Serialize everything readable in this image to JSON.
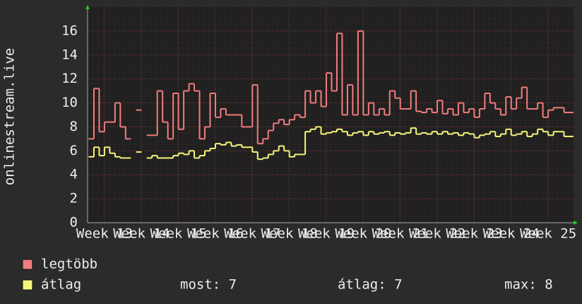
{
  "chart_data": {
    "type": "step",
    "ylabel": "onlinestream.live",
    "x": [
      -3,
      -2,
      -1,
      0,
      1,
      2,
      3,
      4,
      5,
      6,
      7,
      8,
      9,
      10,
      11,
      12,
      13,
      14,
      15,
      16,
      17,
      18,
      19,
      20,
      21,
      22,
      23,
      24,
      25,
      26,
      27,
      28,
      29,
      30,
      31,
      32,
      33,
      34,
      35,
      36,
      37,
      38,
      39,
      40,
      41,
      42,
      43,
      44,
      45,
      46,
      47,
      48,
      49,
      50,
      51,
      52,
      53,
      54,
      55,
      56,
      57,
      58,
      59,
      60,
      61,
      62,
      63,
      64,
      65,
      66,
      67,
      68,
      69,
      70,
      71,
      72,
      73,
      74,
      75,
      76,
      77,
      78,
      79,
      80,
      81,
      82,
      83,
      84,
      85,
      86,
      87,
      88
    ],
    "series": [
      {
        "name": "legtöbb",
        "color": "#f07c7c",
        "values": [
          7.0,
          11.2,
          7.6,
          8.4,
          8.4,
          10.0,
          8.0,
          7.0,
          null,
          9.4,
          null,
          7.3,
          7.3,
          11.0,
          8.4,
          7.0,
          10.8,
          7.8,
          11.0,
          11.6,
          11.0,
          7.0,
          8.0,
          10.8,
          8.8,
          9.5,
          9.0,
          9.0,
          9.0,
          8.0,
          8.0,
          11.5,
          6.6,
          7.0,
          7.7,
          8.3,
          8.6,
          8.2,
          8.6,
          9.0,
          8.8,
          11.0,
          10.0,
          11.0,
          9.7,
          12.5,
          11.0,
          15.8,
          9.0,
          11.5,
          9.0,
          16.0,
          9.0,
          10.0,
          9.0,
          9.5,
          9.0,
          11.0,
          10.4,
          9.5,
          9.5,
          11.0,
          9.3,
          9.2,
          9.5,
          9.2,
          10.2,
          9.1,
          9.5,
          9.0,
          10.0,
          9.2,
          9.5,
          8.8,
          9.5,
          10.8,
          10.0,
          9.5,
          9.0,
          10.5,
          9.5,
          10.4,
          11.3,
          9.5,
          9.5,
          10.0,
          8.8,
          9.4,
          9.6,
          9.6,
          9.2,
          9.2
        ]
      },
      {
        "name": "átlag",
        "color": "#f5f57a",
        "values": [
          5.5,
          6.3,
          5.6,
          6.3,
          5.8,
          5.5,
          5.4,
          5.4,
          null,
          5.9,
          null,
          5.4,
          5.6,
          5.4,
          5.4,
          5.4,
          5.6,
          5.8,
          5.7,
          6.0,
          5.4,
          5.6,
          6.0,
          6.2,
          6.6,
          6.5,
          6.7,
          6.4,
          6.5,
          6.3,
          6.3,
          5.9,
          5.3,
          5.4,
          5.7,
          6.0,
          6.4,
          6.0,
          5.5,
          5.7,
          5.7,
          7.6,
          7.8,
          8.0,
          7.4,
          7.5,
          7.6,
          7.8,
          7.6,
          7.3,
          7.5,
          7.6,
          7.3,
          7.6,
          7.4,
          7.5,
          7.6,
          7.3,
          7.5,
          7.4,
          7.5,
          7.9,
          7.4,
          7.5,
          7.4,
          7.6,
          7.4,
          7.6,
          7.4,
          7.5,
          7.3,
          7.5,
          7.4,
          7.1,
          7.3,
          7.4,
          7.6,
          7.2,
          7.4,
          7.8,
          7.3,
          7.4,
          7.6,
          7.2,
          7.4,
          7.8,
          7.6,
          7.3,
          7.6,
          7.6,
          7.2,
          7.2
        ]
      }
    ],
    "xlim": [
      -3.2,
      88.8
    ],
    "xticks": [
      {
        "value": 0,
        "label": "Week 13"
      },
      {
        "value": 7,
        "label": "Week 14"
      },
      {
        "value": 14,
        "label": "Week 15"
      },
      {
        "value": 21,
        "label": "Week 16"
      },
      {
        "value": 28,
        "label": "Week 17"
      },
      {
        "value": 35,
        "label": "Week 18"
      },
      {
        "value": 42,
        "label": "Week 19"
      },
      {
        "value": 49,
        "label": "Week 20"
      },
      {
        "value": 56,
        "label": "Week 21"
      },
      {
        "value": 63,
        "label": "Week 22"
      },
      {
        "value": 70,
        "label": "Week 23"
      },
      {
        "value": 77,
        "label": "Week 24"
      },
      {
        "value": 84,
        "label": "Week 25"
      }
    ],
    "ylim": [
      0,
      18
    ],
    "yticks": [
      0,
      2,
      4,
      6,
      8,
      10,
      12,
      14,
      16
    ],
    "grid": true,
    "legend_stats": [
      "most: 7",
      "átlag: 7",
      "max: 8"
    ]
  }
}
